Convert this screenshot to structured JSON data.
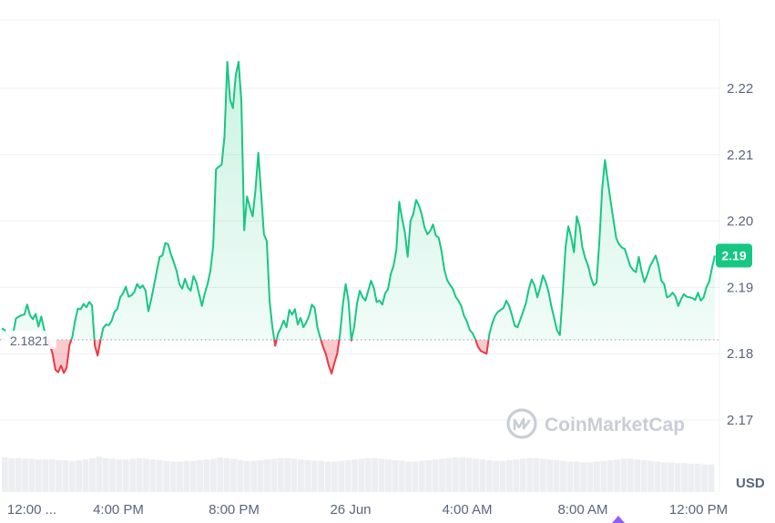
{
  "chart_data": {
    "type": "line",
    "ylim": [
      2.165,
      2.225
    ],
    "yticks": [
      2.17,
      2.18,
      2.19,
      2.2,
      2.21,
      2.22
    ],
    "ytick_labels": [
      "2.17",
      "2.18",
      "2.19",
      "2.20",
      "2.21",
      "2.22"
    ],
    "xtick_labels": [
      "12:00 ...",
      "4:00 PM",
      "8:00 PM",
      "26 Jun",
      "4:00 AM",
      "8:00 AM",
      "12:00 PM"
    ],
    "unit_label": "USD",
    "reference_value": 2.1821,
    "reference_label": "2.1821",
    "current_label": "2.19",
    "watermark": "CoinMarketCap",
    "colors": {
      "up": "#16c784",
      "down": "#ea3943",
      "grid": "#eef0f3",
      "text": "#58667e"
    },
    "series": [
      {
        "values": [
          2.1838,
          2.1836,
          2.1828,
          2.1824,
          2.183,
          2.1853,
          2.1856,
          2.1858,
          2.1859,
          2.1874,
          2.1858,
          2.1852,
          2.186,
          2.1841,
          2.1856,
          2.1837,
          2.1825,
          2.1813,
          2.18,
          2.1776,
          2.1772,
          2.1782,
          2.1771,
          2.1779,
          2.1813,
          2.1825,
          2.185,
          2.1868,
          2.1867,
          2.1875,
          2.187,
          2.1878,
          2.1873,
          2.1812,
          2.1797,
          2.182,
          2.1839,
          2.1844,
          2.1843,
          2.185,
          2.1863,
          2.1868,
          2.1885,
          2.1891,
          2.1901,
          2.1886,
          2.1888,
          2.1893,
          2.1905,
          2.1899,
          2.1903,
          2.1895,
          2.1864,
          2.1882,
          2.1903,
          2.1925,
          2.1946,
          2.1948,
          2.1967,
          2.1965,
          2.195,
          2.1938,
          2.1925,
          2.1905,
          2.1898,
          2.1913,
          2.19,
          2.1895,
          2.1917,
          2.1908,
          2.189,
          2.1872,
          2.1891,
          2.1905,
          2.1925,
          2.1962,
          2.2078,
          2.2082,
          2.2085,
          2.2127,
          2.224,
          2.2183,
          2.217,
          2.222,
          2.224,
          2.218,
          2.1986,
          2.2037,
          2.2021,
          2.2007,
          2.2047,
          2.2103,
          2.2042,
          2.198,
          2.197,
          2.188,
          2.184,
          2.1812,
          2.183,
          2.1839,
          2.185,
          2.184,
          2.1866,
          2.1859,
          2.1867,
          2.1844,
          2.1854,
          2.184,
          2.1847,
          2.1857,
          2.1874,
          2.1869,
          2.1839,
          2.1824,
          2.181,
          2.1799,
          2.1782,
          2.177,
          2.1786,
          2.18,
          2.183,
          2.1874,
          2.1905,
          2.188,
          2.182,
          2.184,
          2.1875,
          2.1895,
          2.1885,
          2.188,
          2.1895,
          2.191,
          2.1899,
          2.1878,
          2.188,
          2.1874,
          2.1891,
          2.1897,
          2.192,
          2.1933,
          2.1957,
          2.2029,
          2.2004,
          2.1983,
          2.1946,
          2.2,
          2.2011,
          2.2032,
          2.2023,
          2.201,
          2.199,
          2.198,
          2.1985,
          2.1995,
          2.1978,
          2.1975,
          2.1955,
          2.1927,
          2.1911,
          2.1904,
          2.1898,
          2.1886,
          2.188,
          2.1872,
          2.1857,
          2.1849,
          2.1836,
          2.1831,
          2.1822,
          2.181,
          2.1804,
          2.1802,
          2.18,
          2.183,
          2.1846,
          2.1857,
          2.1863,
          2.1866,
          2.1869,
          2.188,
          2.1872,
          2.1858,
          2.1842,
          2.184,
          2.1852,
          2.1864,
          2.1877,
          2.1898,
          2.1912,
          2.1903,
          2.1885,
          2.19,
          2.1918,
          2.1908,
          2.1893,
          2.1871,
          2.1853,
          2.1835,
          2.1828,
          2.189,
          2.196,
          2.1992,
          2.1976,
          2.1953,
          2.2007,
          2.1992,
          2.196,
          2.1944,
          2.1933,
          2.1915,
          2.1903,
          2.1907,
          2.1968,
          2.2048,
          2.2092,
          2.206,
          2.203,
          2.2002,
          2.1974,
          2.1965,
          2.196,
          2.1958,
          2.1945,
          2.1932,
          2.1926,
          2.1923,
          2.1946,
          2.1924,
          2.1908,
          2.1919,
          2.1932,
          2.194,
          2.1948,
          2.1933,
          2.191,
          2.1905,
          2.1885,
          2.1887,
          2.1892,
          2.1886,
          2.1872,
          2.1882,
          2.189,
          2.1886,
          2.1885,
          2.1884,
          2.1881,
          2.1892,
          2.188,
          2.1885,
          2.19,
          2.1909,
          2.193,
          2.1948
        ]
      }
    ],
    "volume": [
      0.49,
      0.48,
      0.48,
      0.47,
      0.47,
      0.46,
      0.46,
      0.46,
      0.45,
      0.45,
      0.44,
      0.45,
      0.46,
      0.48,
      0.5,
      0.48,
      0.47,
      0.46,
      0.46,
      0.47,
      0.48,
      0.47,
      0.46,
      0.45,
      0.44,
      0.43,
      0.43,
      0.44,
      0.44,
      0.45,
      0.46,
      0.47,
      0.49,
      0.48,
      0.47,
      0.45,
      0.44,
      0.44,
      0.45,
      0.46,
      0.47,
      0.48,
      0.48,
      0.47,
      0.46,
      0.45,
      0.44,
      0.44,
      0.43,
      0.43,
      0.44,
      0.45,
      0.46,
      0.47,
      0.48,
      0.48,
      0.47,
      0.46,
      0.45,
      0.44,
      0.43,
      0.43,
      0.44,
      0.45,
      0.46,
      0.47,
      0.48,
      0.49,
      0.49,
      0.48,
      0.47,
      0.46,
      0.45,
      0.44,
      0.44,
      0.45,
      0.46,
      0.47,
      0.48,
      0.48,
      0.47,
      0.46,
      0.45,
      0.44,
      0.43,
      0.43,
      0.42,
      0.42,
      0.43,
      0.44,
      0.45,
      0.46,
      0.47,
      0.47,
      0.46,
      0.45,
      0.44,
      0.43,
      0.42,
      0.42,
      0.41,
      0.41,
      0.4,
      0.4,
      0.39,
      0.39
    ]
  }
}
